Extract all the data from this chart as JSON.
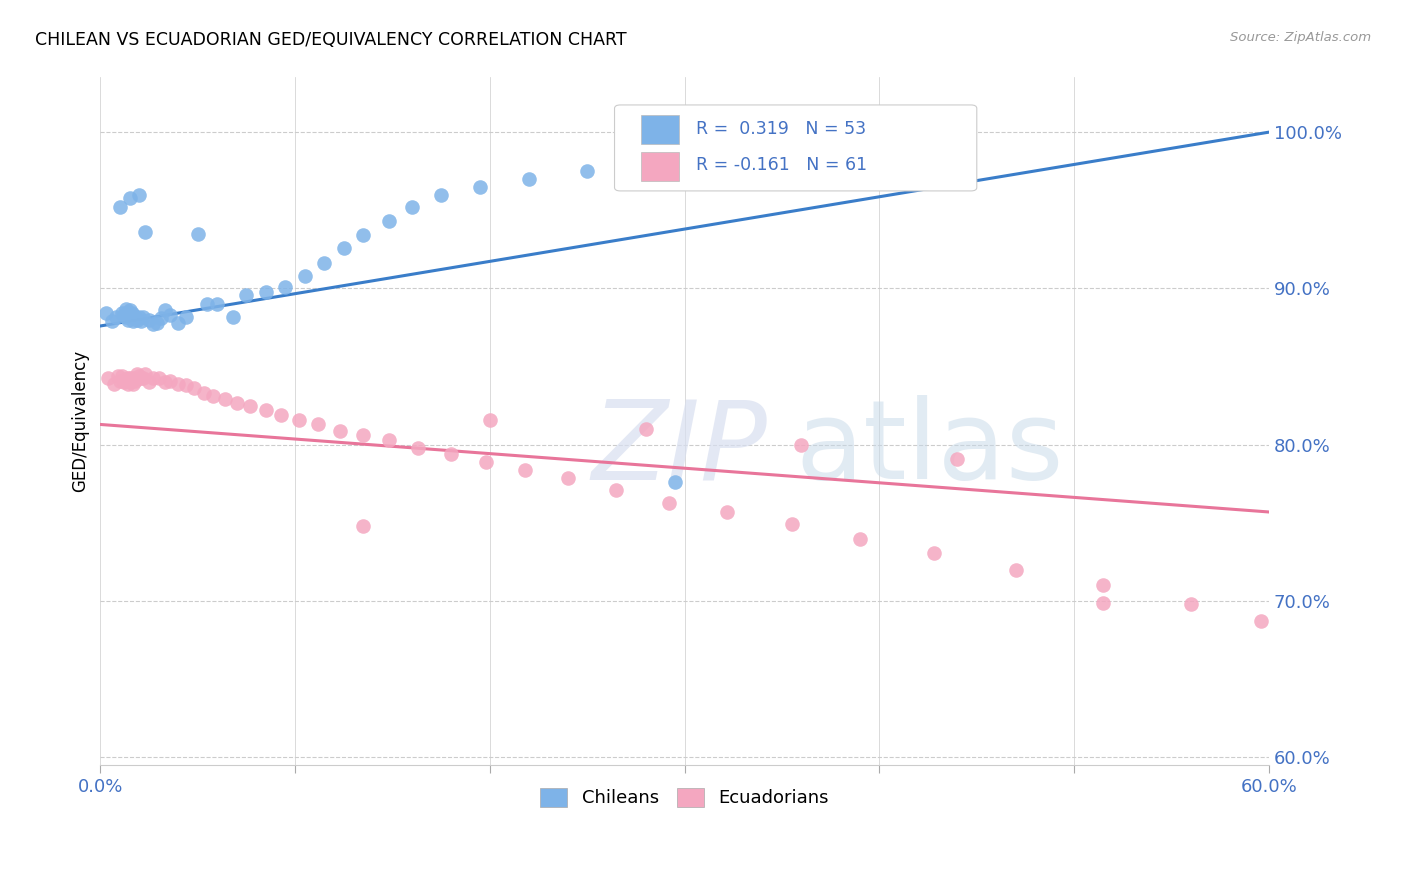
{
  "title": "CHILEAN VS ECUADORIAN GED/EQUIVALENCY CORRELATION CHART",
  "source": "Source: ZipAtlas.com",
  "ylabel": "GED/Equivalency",
  "yticks_labels": [
    "60.0%",
    "70.0%",
    "80.0%",
    "90.0%",
    "100.0%"
  ],
  "ytick_values": [
    0.6,
    0.7,
    0.8,
    0.9,
    1.0
  ],
  "xmin": 0.0,
  "xmax": 0.6,
  "ymin": 0.595,
  "ymax": 1.035,
  "legend_label1": "Chileans",
  "legend_label2": "Ecuadorians",
  "color_chilean": "#7EB3E8",
  "color_ecuadorian": "#F4A7C0",
  "color_chilean_line": "#3A7DC9",
  "color_ecuadorian_line": "#E8759A",
  "color_axis_labels": "#4472C4",
  "chilean_x": [
    0.003,
    0.006,
    0.008,
    0.01,
    0.011,
    0.012,
    0.013,
    0.013,
    0.014,
    0.014,
    0.015,
    0.015,
    0.016,
    0.016,
    0.017,
    0.017,
    0.018,
    0.018,
    0.019,
    0.02,
    0.02,
    0.021,
    0.022,
    0.023,
    0.025,
    0.027,
    0.029,
    0.031,
    0.033,
    0.036,
    0.04,
    0.044,
    0.05,
    0.055,
    0.06,
    0.068,
    0.075,
    0.085,
    0.095,
    0.105,
    0.115,
    0.125,
    0.135,
    0.148,
    0.16,
    0.175,
    0.195,
    0.22,
    0.25,
    0.28,
    0.31,
    0.34,
    0.295
  ],
  "chilean_y": [
    0.884,
    0.879,
    0.882,
    0.952,
    0.884,
    0.883,
    0.887,
    0.882,
    0.885,
    0.88,
    0.958,
    0.886,
    0.884,
    0.882,
    0.883,
    0.879,
    0.882,
    0.882,
    0.88,
    0.882,
    0.96,
    0.879,
    0.882,
    0.936,
    0.88,
    0.877,
    0.878,
    0.881,
    0.886,
    0.883,
    0.878,
    0.882,
    0.935,
    0.89,
    0.89,
    0.882,
    0.896,
    0.898,
    0.901,
    0.908,
    0.916,
    0.926,
    0.934,
    0.943,
    0.952,
    0.96,
    0.965,
    0.97,
    0.975,
    0.98,
    0.988,
    0.995,
    0.776
  ],
  "ecuadorian_x": [
    0.004,
    0.007,
    0.009,
    0.01,
    0.011,
    0.012,
    0.013,
    0.014,
    0.014,
    0.015,
    0.015,
    0.016,
    0.017,
    0.017,
    0.018,
    0.019,
    0.02,
    0.021,
    0.022,
    0.023,
    0.025,
    0.027,
    0.03,
    0.033,
    0.036,
    0.04,
    0.044,
    0.048,
    0.053,
    0.058,
    0.064,
    0.07,
    0.077,
    0.085,
    0.093,
    0.102,
    0.112,
    0.123,
    0.135,
    0.148,
    0.163,
    0.18,
    0.198,
    0.218,
    0.24,
    0.265,
    0.292,
    0.322,
    0.355,
    0.39,
    0.428,
    0.47,
    0.515,
    0.56,
    0.596,
    0.135,
    0.2,
    0.28,
    0.36,
    0.44,
    0.515
  ],
  "ecuadorian_y": [
    0.843,
    0.839,
    0.844,
    0.841,
    0.844,
    0.84,
    0.841,
    0.843,
    0.839,
    0.841,
    0.843,
    0.841,
    0.839,
    0.843,
    0.841,
    0.845,
    0.844,
    0.843,
    0.843,
    0.845,
    0.84,
    0.843,
    0.843,
    0.84,
    0.841,
    0.839,
    0.838,
    0.836,
    0.833,
    0.831,
    0.829,
    0.827,
    0.825,
    0.822,
    0.819,
    0.816,
    0.813,
    0.809,
    0.806,
    0.803,
    0.798,
    0.794,
    0.789,
    0.784,
    0.779,
    0.771,
    0.763,
    0.757,
    0.749,
    0.74,
    0.731,
    0.72,
    0.71,
    0.698,
    0.687,
    0.748,
    0.816,
    0.81,
    0.8,
    0.791,
    0.699
  ],
  "chilean_line_x0": 0.0,
  "chilean_line_x1": 0.6,
  "chilean_line_y0": 0.876,
  "chilean_line_y1": 1.0,
  "ecuadorian_line_x0": 0.0,
  "ecuadorian_line_x1": 0.6,
  "ecuadorian_line_y0": 0.813,
  "ecuadorian_line_y1": 0.757
}
